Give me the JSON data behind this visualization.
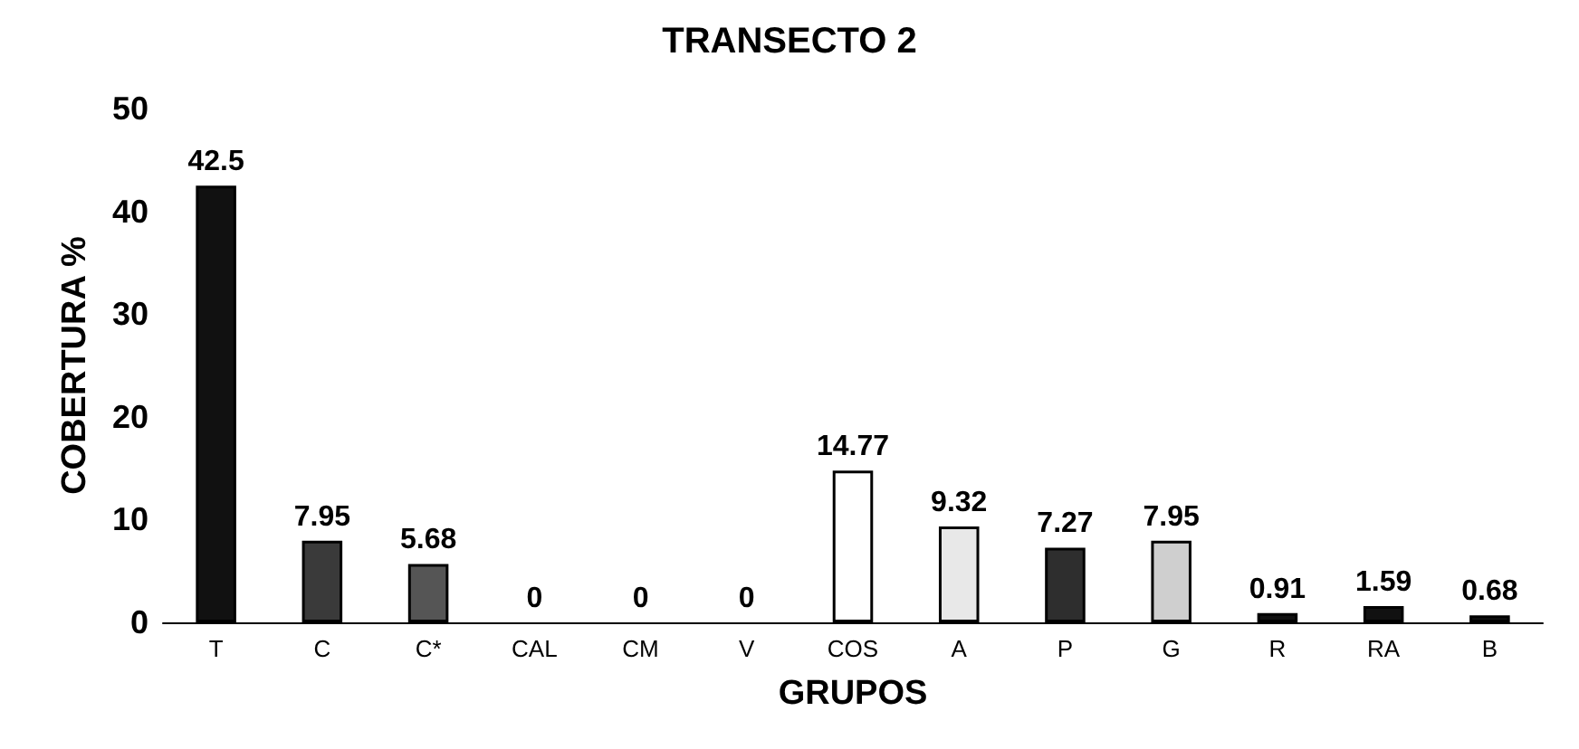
{
  "chart_data": {
    "type": "bar",
    "title": "TRANSECTO 2",
    "xlabel": "GRUPOS",
    "ylabel": "COBERTURA %",
    "categories": [
      "T",
      "C",
      "C*",
      "CAL",
      "CM",
      "V",
      "COS",
      "A",
      "P",
      "G",
      "R",
      "RA",
      "B"
    ],
    "values": [
      42.5,
      7.95,
      5.68,
      0,
      0,
      0,
      14.77,
      9.32,
      7.27,
      7.95,
      0.91,
      1.59,
      0.68
    ],
    "colors": [
      "#111111",
      "#3a3a3a",
      "#555555",
      "#111111",
      "#111111",
      "#111111",
      "#ffffff",
      "#e8e8e8",
      "#2e2e2e",
      "#cfcfcf",
      "#111111",
      "#111111",
      "#111111"
    ],
    "ylim": [
      0,
      50
    ],
    "yticks": [
      0,
      10,
      20,
      30,
      40,
      50
    ],
    "grid": false,
    "data_labels": true
  }
}
